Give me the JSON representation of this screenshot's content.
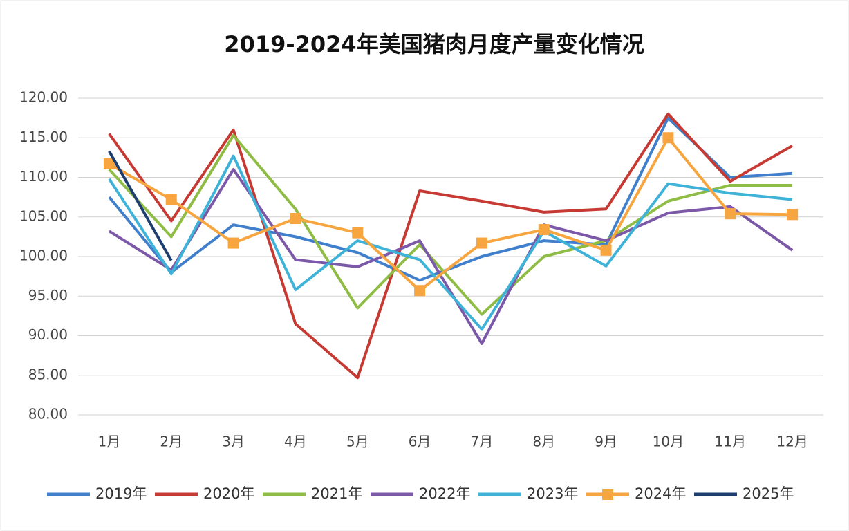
{
  "chart_data": {
    "type": "line",
    "title": "2019-2024年美国猪肉月度产量变化情况",
    "categories": [
      "1月",
      "2月",
      "3月",
      "4月",
      "5月",
      "6月",
      "7月",
      "8月",
      "9月",
      "10月",
      "11月",
      "12月"
    ],
    "series": [
      {
        "name": "2019年",
        "color": "#3f7fcb",
        "values": [
          107.5,
          98,
          104,
          102.5,
          100.5,
          97,
          100,
          102,
          101.5,
          117.5,
          110,
          110.5
        ]
      },
      {
        "name": "2020年",
        "color": "#c63a33",
        "values": [
          115.5,
          104.5,
          116,
          91.5,
          84.7,
          108.3,
          107,
          105.6,
          106,
          118,
          109.5,
          114
        ]
      },
      {
        "name": "2021年",
        "color": "#8fbc45",
        "values": [
          111,
          102.5,
          115.3,
          106,
          93.5,
          101.5,
          92.7,
          100,
          102,
          107,
          109,
          109
        ]
      },
      {
        "name": "2022年",
        "color": "#7b58a8",
        "values": [
          103.2,
          98.3,
          111,
          99.6,
          98.7,
          102,
          89,
          104,
          102,
          105.5,
          106.3,
          100.8
        ]
      },
      {
        "name": "2023年",
        "color": "#3fb2d8",
        "values": [
          109.8,
          97.8,
          112.7,
          95.8,
          102,
          99.6,
          90.8,
          103.2,
          98.8,
          109.2,
          108,
          107.2
        ]
      },
      {
        "name": "2024年",
        "color": "#f7a53f",
        "marker": "square",
        "values": [
          111.7,
          107.2,
          101.7,
          104.8,
          103,
          95.7,
          101.7,
          103.4,
          100.8,
          115,
          105.4,
          105.3
        ]
      },
      {
        "name": "2025年",
        "color": "#1f3e70",
        "values": [
          113.3,
          99.5,
          null,
          null,
          null,
          null,
          null,
          null,
          null,
          null,
          null,
          null
        ]
      }
    ],
    "ylim": [
      80,
      120
    ],
    "yticks": [
      {
        "value": 80,
        "label": "80.00"
      },
      {
        "value": 85,
        "label": "85.00"
      },
      {
        "value": 90,
        "label": "90.00"
      },
      {
        "value": 95,
        "label": "95.00"
      },
      {
        "value": 100,
        "label": "100.00"
      },
      {
        "value": 105,
        "label": "105.00"
      },
      {
        "value": 110,
        "label": "110.00"
      },
      {
        "value": 115,
        "label": "115.00"
      },
      {
        "value": 120,
        "label": "120.00"
      }
    ],
    "grid": true,
    "legend": "bottom"
  }
}
